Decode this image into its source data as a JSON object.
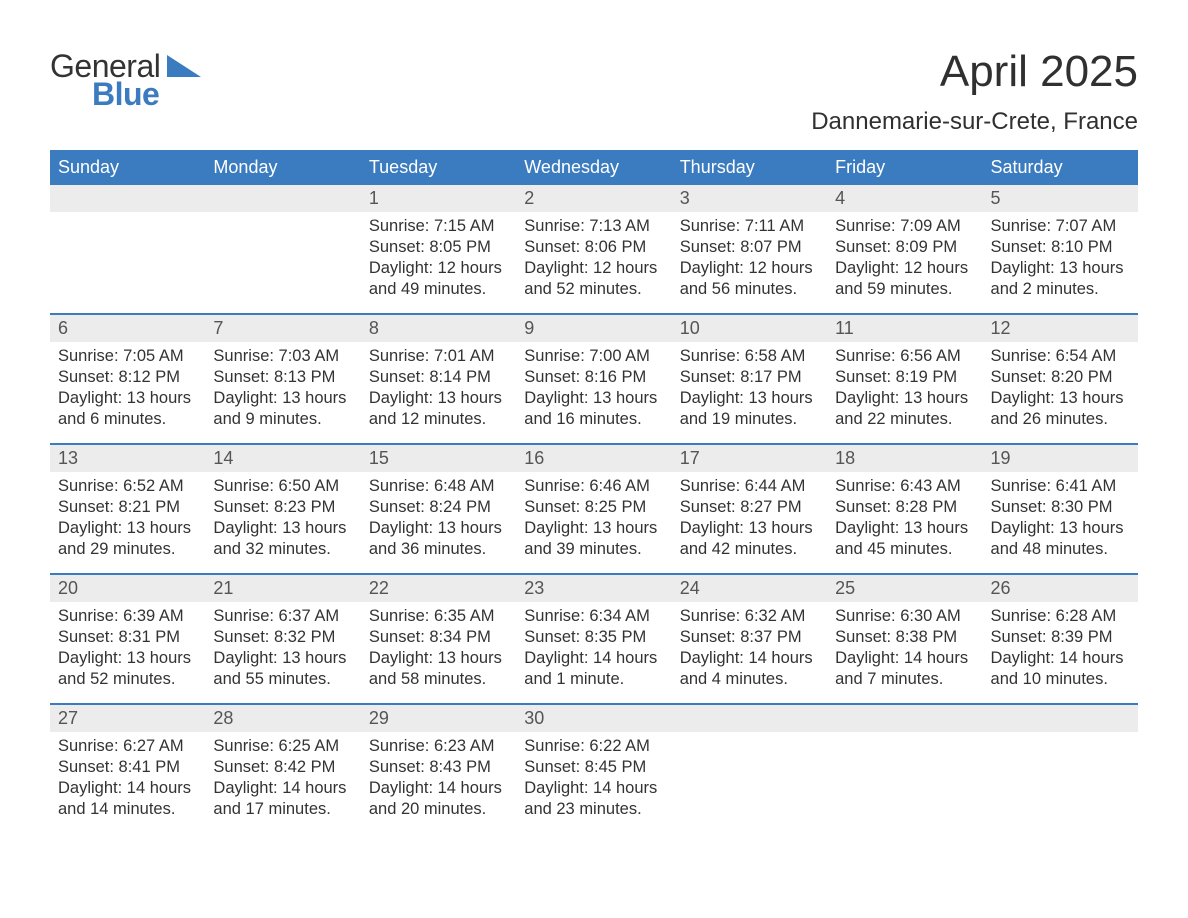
{
  "brand": {
    "word1": "General",
    "word2": "Blue"
  },
  "title": "April 2025",
  "location": "Dannemarie-sur-Crete, France",
  "colors": {
    "header_bg": "#3b7bbf",
    "daynum_bg": "#ececec",
    "text": "#333333",
    "page_bg": "#ffffff"
  },
  "day_names": [
    "Sunday",
    "Monday",
    "Tuesday",
    "Wednesday",
    "Thursday",
    "Friday",
    "Saturday"
  ],
  "weeks": [
    [
      {
        "n": "",
        "sr": "",
        "ss": "",
        "dl": ""
      },
      {
        "n": "",
        "sr": "",
        "ss": "",
        "dl": ""
      },
      {
        "n": "1",
        "sr": "7:15 AM",
        "ss": "8:05 PM",
        "dl": "12 hours and 49 minutes."
      },
      {
        "n": "2",
        "sr": "7:13 AM",
        "ss": "8:06 PM",
        "dl": "12 hours and 52 minutes."
      },
      {
        "n": "3",
        "sr": "7:11 AM",
        "ss": "8:07 PM",
        "dl": "12 hours and 56 minutes."
      },
      {
        "n": "4",
        "sr": "7:09 AM",
        "ss": "8:09 PM",
        "dl": "12 hours and 59 minutes."
      },
      {
        "n": "5",
        "sr": "7:07 AM",
        "ss": "8:10 PM",
        "dl": "13 hours and 2 minutes."
      }
    ],
    [
      {
        "n": "6",
        "sr": "7:05 AM",
        "ss": "8:12 PM",
        "dl": "13 hours and 6 minutes."
      },
      {
        "n": "7",
        "sr": "7:03 AM",
        "ss": "8:13 PM",
        "dl": "13 hours and 9 minutes."
      },
      {
        "n": "8",
        "sr": "7:01 AM",
        "ss": "8:14 PM",
        "dl": "13 hours and 12 minutes."
      },
      {
        "n": "9",
        "sr": "7:00 AM",
        "ss": "8:16 PM",
        "dl": "13 hours and 16 minutes."
      },
      {
        "n": "10",
        "sr": "6:58 AM",
        "ss": "8:17 PM",
        "dl": "13 hours and 19 minutes."
      },
      {
        "n": "11",
        "sr": "6:56 AM",
        "ss": "8:19 PM",
        "dl": "13 hours and 22 minutes."
      },
      {
        "n": "12",
        "sr": "6:54 AM",
        "ss": "8:20 PM",
        "dl": "13 hours and 26 minutes."
      }
    ],
    [
      {
        "n": "13",
        "sr": "6:52 AM",
        "ss": "8:21 PM",
        "dl": "13 hours and 29 minutes."
      },
      {
        "n": "14",
        "sr": "6:50 AM",
        "ss": "8:23 PM",
        "dl": "13 hours and 32 minutes."
      },
      {
        "n": "15",
        "sr": "6:48 AM",
        "ss": "8:24 PM",
        "dl": "13 hours and 36 minutes."
      },
      {
        "n": "16",
        "sr": "6:46 AM",
        "ss": "8:25 PM",
        "dl": "13 hours and 39 minutes."
      },
      {
        "n": "17",
        "sr": "6:44 AM",
        "ss": "8:27 PM",
        "dl": "13 hours and 42 minutes."
      },
      {
        "n": "18",
        "sr": "6:43 AM",
        "ss": "8:28 PM",
        "dl": "13 hours and 45 minutes."
      },
      {
        "n": "19",
        "sr": "6:41 AM",
        "ss": "8:30 PM",
        "dl": "13 hours and 48 minutes."
      }
    ],
    [
      {
        "n": "20",
        "sr": "6:39 AM",
        "ss": "8:31 PM",
        "dl": "13 hours and 52 minutes."
      },
      {
        "n": "21",
        "sr": "6:37 AM",
        "ss": "8:32 PM",
        "dl": "13 hours and 55 minutes."
      },
      {
        "n": "22",
        "sr": "6:35 AM",
        "ss": "8:34 PM",
        "dl": "13 hours and 58 minutes."
      },
      {
        "n": "23",
        "sr": "6:34 AM",
        "ss": "8:35 PM",
        "dl": "14 hours and 1 minute."
      },
      {
        "n": "24",
        "sr": "6:32 AM",
        "ss": "8:37 PM",
        "dl": "14 hours and 4 minutes."
      },
      {
        "n": "25",
        "sr": "6:30 AM",
        "ss": "8:38 PM",
        "dl": "14 hours and 7 minutes."
      },
      {
        "n": "26",
        "sr": "6:28 AM",
        "ss": "8:39 PM",
        "dl": "14 hours and 10 minutes."
      }
    ],
    [
      {
        "n": "27",
        "sr": "6:27 AM",
        "ss": "8:41 PM",
        "dl": "14 hours and 14 minutes."
      },
      {
        "n": "28",
        "sr": "6:25 AM",
        "ss": "8:42 PM",
        "dl": "14 hours and 17 minutes."
      },
      {
        "n": "29",
        "sr": "6:23 AM",
        "ss": "8:43 PM",
        "dl": "14 hours and 20 minutes."
      },
      {
        "n": "30",
        "sr": "6:22 AM",
        "ss": "8:45 PM",
        "dl": "14 hours and 23 minutes."
      },
      {
        "n": "",
        "sr": "",
        "ss": "",
        "dl": ""
      },
      {
        "n": "",
        "sr": "",
        "ss": "",
        "dl": ""
      },
      {
        "n": "",
        "sr": "",
        "ss": "",
        "dl": ""
      }
    ]
  ],
  "labels": {
    "sunrise": "Sunrise: ",
    "sunset": "Sunset: ",
    "daylight": "Daylight: "
  }
}
